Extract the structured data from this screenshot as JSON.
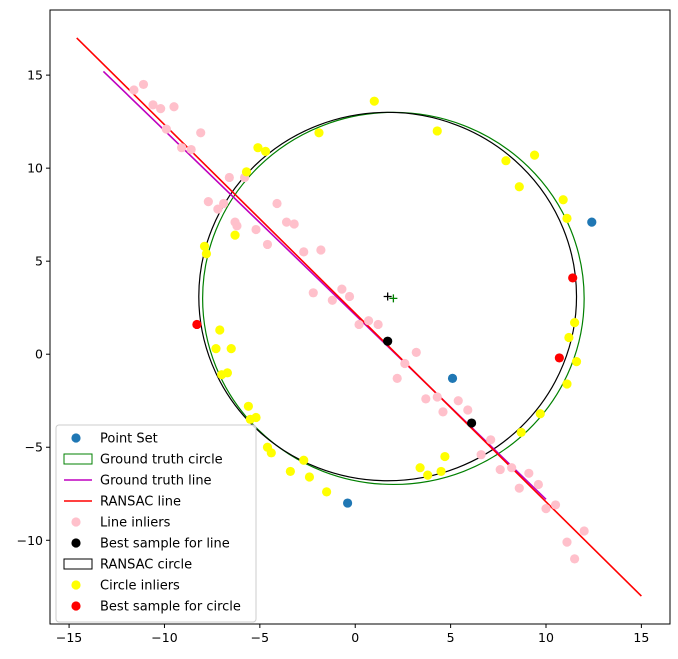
{
  "chart_data": {
    "type": "scatter",
    "title": "",
    "xlabel": "",
    "ylabel": "",
    "xlim": [
      -16,
      16.5
    ],
    "ylim": [
      -14.5,
      18.5
    ],
    "xticks": [
      -15,
      -10,
      -5,
      0,
      5,
      10,
      15
    ],
    "yticks": [
      -10,
      -5,
      0,
      5,
      10,
      15
    ],
    "xtick_labels": [
      "−15",
      "−10",
      "−5",
      "0",
      "5",
      "10",
      "15"
    ],
    "ytick_labels": [
      "−10",
      "−5",
      "0",
      "5",
      "10",
      "15"
    ],
    "legend": {
      "position": "lower-left",
      "entries": [
        {
          "label": "Point Set",
          "kind": "marker",
          "color": "#1f77b4"
        },
        {
          "label": "Ground truth circle",
          "kind": "patch",
          "color": "#008000"
        },
        {
          "label": "Ground truth line",
          "kind": "line",
          "color": "#bf00bf"
        },
        {
          "label": "RANSAC line",
          "kind": "line",
          "color": "#ff0000"
        },
        {
          "label": "Line inliers",
          "kind": "marker",
          "color": "#ffc0cb"
        },
        {
          "label": "Best sample for line",
          "kind": "marker",
          "color": "#000000"
        },
        {
          "label": "RANSAC circle",
          "kind": "patch",
          "color": "#000000"
        },
        {
          "label": "Circle inliers",
          "kind": "marker",
          "color": "#ffff00"
        },
        {
          "label": "Best sample for circle",
          "kind": "marker",
          "color": "#ff0000"
        }
      ]
    },
    "ground_truth_circle": {
      "cx": 2.0,
      "cy": 3.0,
      "r": 10.0,
      "color": "#008000"
    },
    "ransac_circle": {
      "cx": 1.7,
      "cy": 3.1,
      "r": 9.9,
      "color": "#000000"
    },
    "ground_truth_line": {
      "x": [
        -13.2,
        10.0
      ],
      "y": [
        15.2,
        -7.8
      ],
      "color": "#bf00bf"
    },
    "ransac_line": {
      "x": [
        -14.6,
        15.0
      ],
      "y": [
        17.0,
        -13.0
      ],
      "color": "#ff0000"
    },
    "center_markers": [
      {
        "x": 2.0,
        "y": 3.0,
        "color": "#008000"
      },
      {
        "x": 1.7,
        "y": 3.1,
        "color": "#000000"
      }
    ],
    "point_set": {
      "color": "#1f77b4",
      "points": [
        [
          12.4,
          7.1
        ],
        [
          5.1,
          -1.3
        ],
        [
          -0.4,
          -8.0
        ]
      ]
    },
    "line_inliers": {
      "color": "#ffc0cb",
      "points": [
        [
          -11.6,
          14.2
        ],
        [
          -11.1,
          14.5
        ],
        [
          -10.6,
          13.4
        ],
        [
          -10.2,
          13.2
        ],
        [
          -9.5,
          13.3
        ],
        [
          -9.9,
          12.1
        ],
        [
          -9.1,
          11.1
        ],
        [
          -8.6,
          11.0
        ],
        [
          -8.1,
          11.9
        ],
        [
          -7.7,
          8.2
        ],
        [
          -7.2,
          7.8
        ],
        [
          -6.9,
          8.1
        ],
        [
          -6.6,
          9.5
        ],
        [
          -6.3,
          7.1
        ],
        [
          -6.2,
          6.9
        ],
        [
          -5.8,
          9.5
        ],
        [
          -5.2,
          6.7
        ],
        [
          -4.6,
          5.9
        ],
        [
          -4.1,
          8.1
        ],
        [
          -3.6,
          7.1
        ],
        [
          -3.2,
          7.0
        ],
        [
          -2.7,
          5.5
        ],
        [
          -2.2,
          3.3
        ],
        [
          -1.8,
          5.6
        ],
        [
          -1.2,
          2.9
        ],
        [
          -0.7,
          3.5
        ],
        [
          -0.3,
          3.1
        ],
        [
          0.2,
          1.6
        ],
        [
          0.7,
          1.8
        ],
        [
          1.2,
          1.6
        ],
        [
          2.2,
          -1.3
        ],
        [
          2.6,
          -0.5
        ],
        [
          3.2,
          0.1
        ],
        [
          3.7,
          -2.4
        ],
        [
          4.3,
          -2.3
        ],
        [
          4.6,
          -3.1
        ],
        [
          5.4,
          -2.5
        ],
        [
          5.9,
          -3.0
        ],
        [
          6.6,
          -5.4
        ],
        [
          7.1,
          -4.6
        ],
        [
          7.6,
          -6.2
        ],
        [
          8.2,
          -6.1
        ],
        [
          8.6,
          -7.2
        ],
        [
          9.1,
          -6.4
        ],
        [
          9.6,
          -7.0
        ],
        [
          10.0,
          -8.3
        ],
        [
          10.5,
          -8.1
        ],
        [
          11.1,
          -10.1
        ],
        [
          11.5,
          -11.0
        ],
        [
          12.0,
          -9.5
        ]
      ]
    },
    "best_line_sample": {
      "color": "#000000",
      "points": [
        [
          1.7,
          0.7
        ],
        [
          6.1,
          -3.7
        ]
      ]
    },
    "circle_inliers": {
      "color": "#ffff00",
      "points": [
        [
          1.0,
          13.6
        ],
        [
          4.3,
          12.0
        ],
        [
          -1.9,
          11.9
        ],
        [
          7.9,
          10.4
        ],
        [
          9.4,
          10.7
        ],
        [
          8.6,
          9.0
        ],
        [
          -5.1,
          11.1
        ],
        [
          -4.7,
          10.9
        ],
        [
          -5.7,
          9.8
        ],
        [
          10.9,
          8.3
        ],
        [
          11.1,
          7.3
        ],
        [
          -7.9,
          5.8
        ],
        [
          -7.8,
          5.4
        ],
        [
          -6.3,
          6.4
        ],
        [
          11.5,
          1.7
        ],
        [
          11.2,
          0.9
        ],
        [
          11.6,
          -0.4
        ],
        [
          -7.1,
          1.3
        ],
        [
          -7.3,
          0.3
        ],
        [
          -6.5,
          0.3
        ],
        [
          -7.0,
          -1.1
        ],
        [
          -6.7,
          -1.0
        ],
        [
          11.1,
          -1.6
        ],
        [
          -5.6,
          -2.8
        ],
        [
          -5.5,
          -3.5
        ],
        [
          -5.2,
          -3.4
        ],
        [
          9.7,
          -3.2
        ],
        [
          8.7,
          -4.2
        ],
        [
          -4.6,
          -5.0
        ],
        [
          -4.4,
          -5.3
        ],
        [
          -2.7,
          -5.7
        ],
        [
          -2.4,
          -6.6
        ],
        [
          -3.4,
          -6.3
        ],
        [
          4.7,
          -5.5
        ],
        [
          3.4,
          -6.1
        ],
        [
          3.8,
          -6.5
        ],
        [
          -1.5,
          -7.4
        ],
        [
          4.5,
          -6.3
        ]
      ]
    },
    "best_circle_sample": {
      "color": "#ff0000",
      "points": [
        [
          11.4,
          4.1
        ],
        [
          10.7,
          -0.2
        ],
        [
          -8.3,
          1.6
        ]
      ]
    }
  }
}
